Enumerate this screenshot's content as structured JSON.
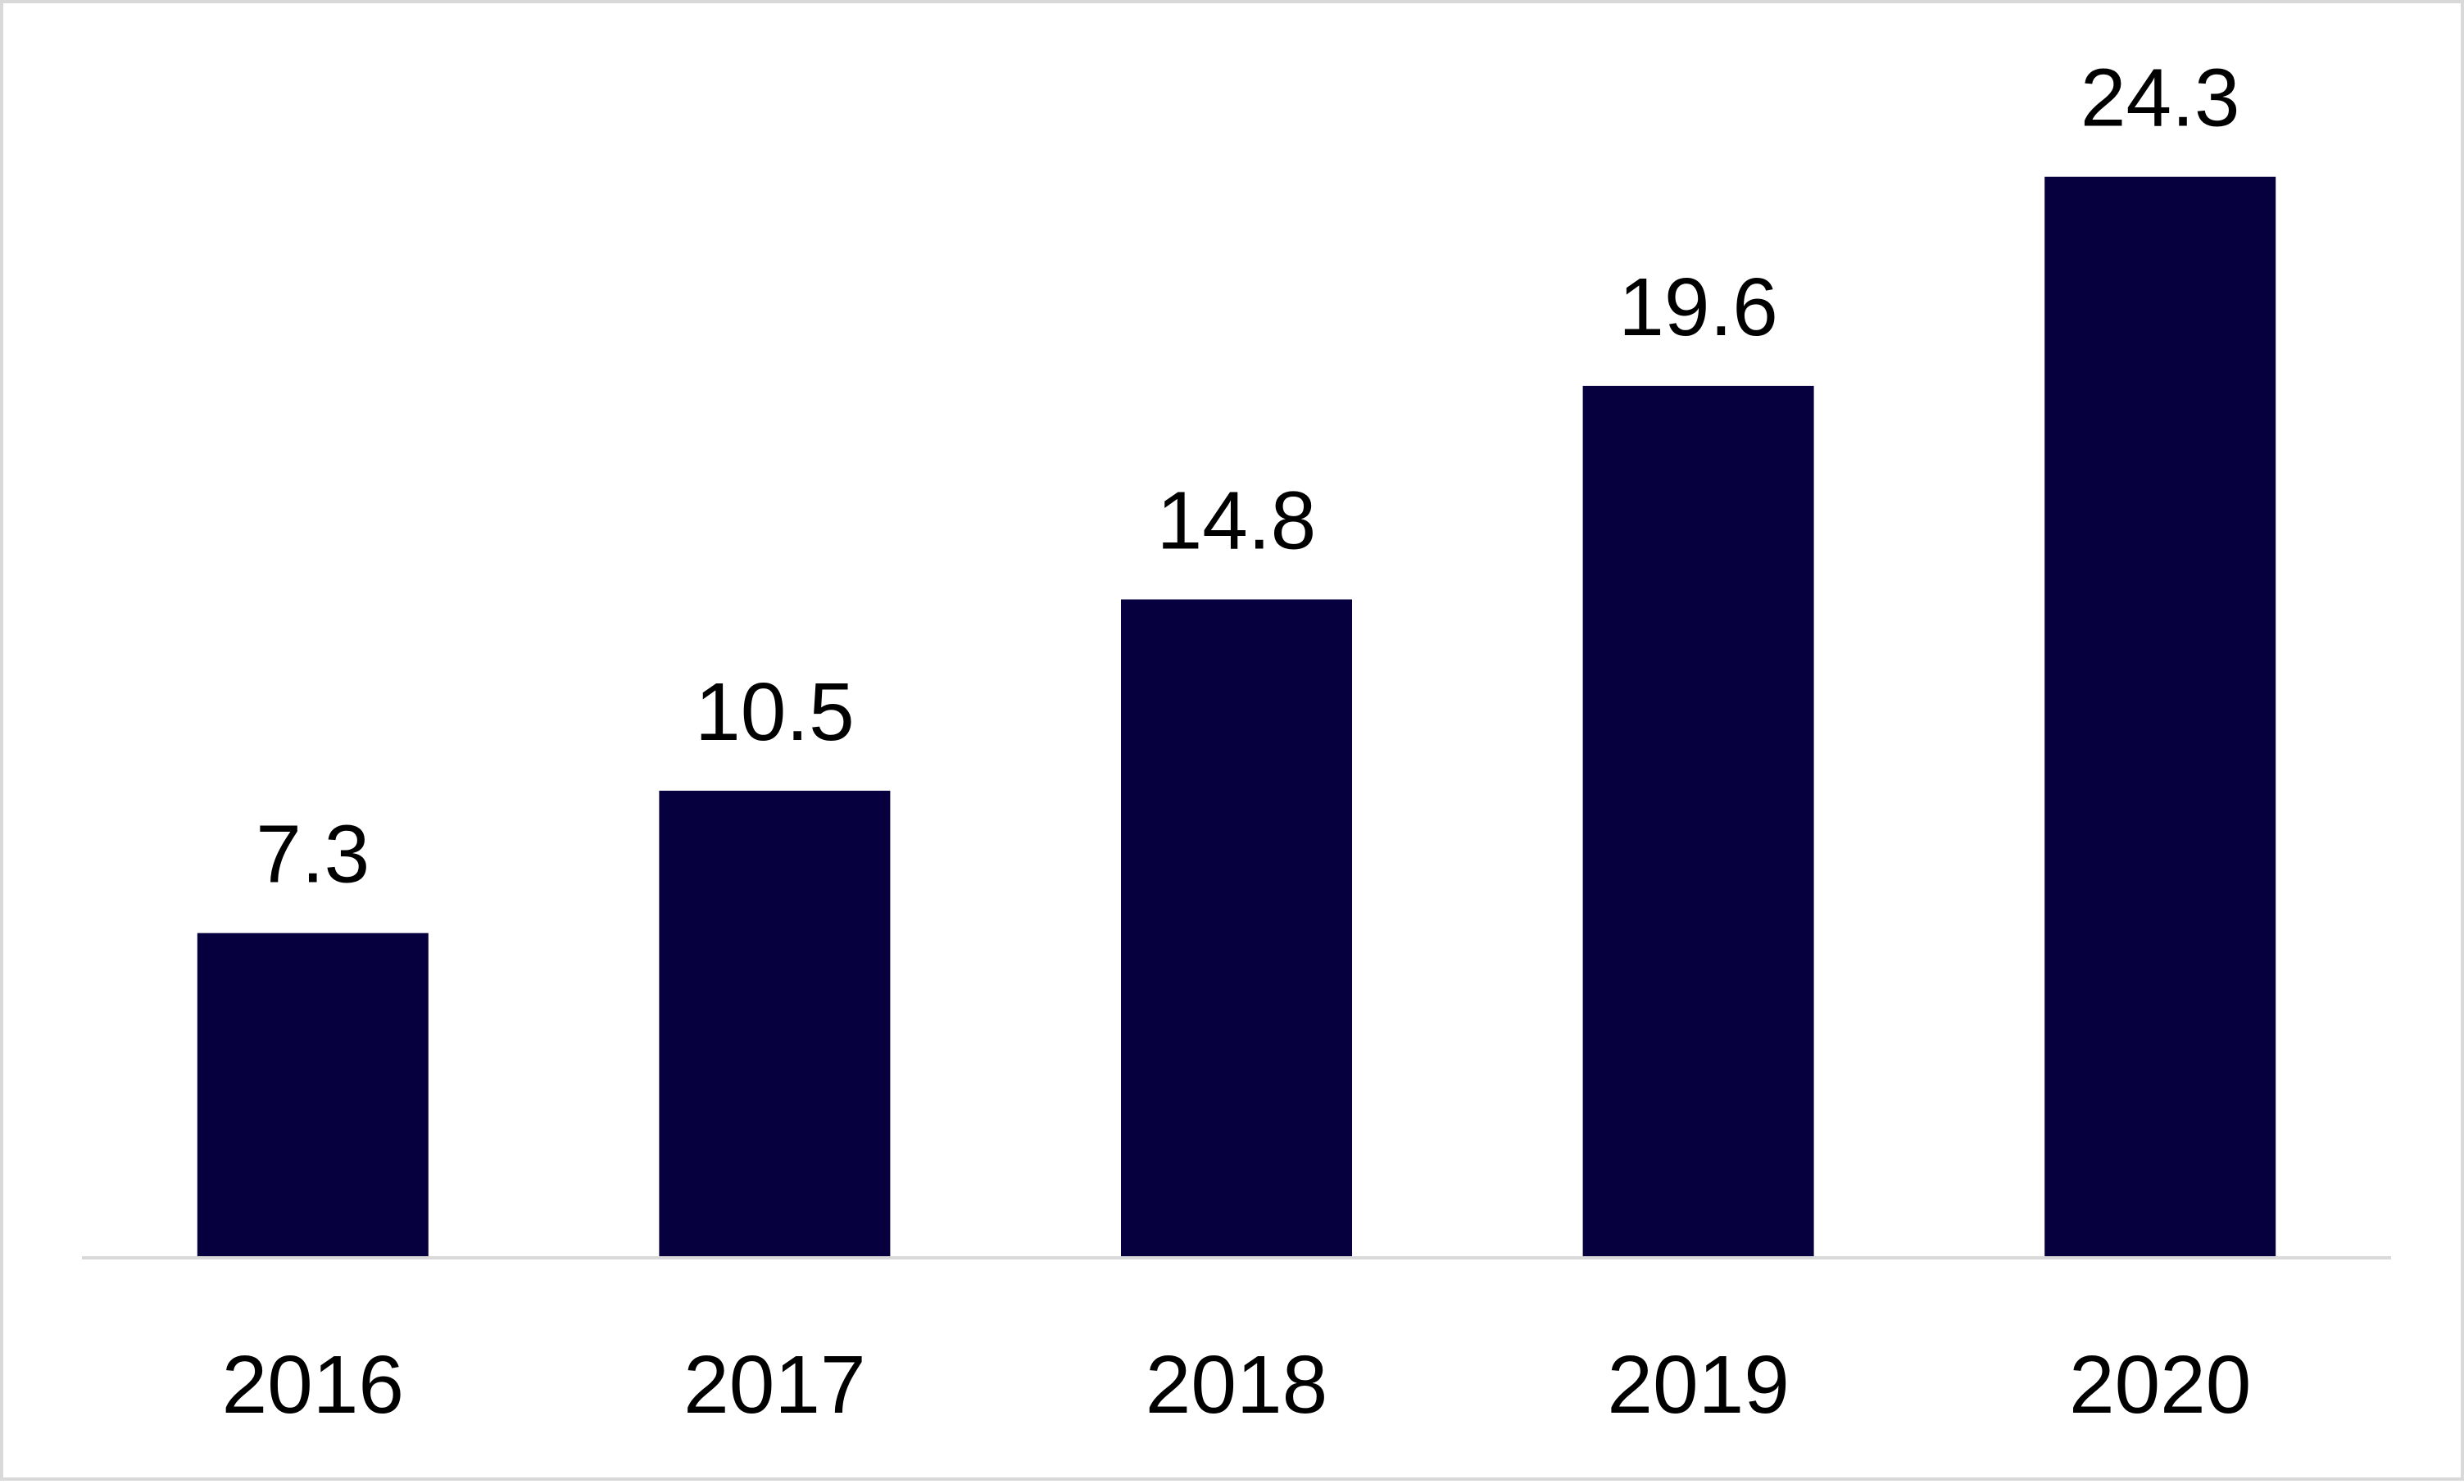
{
  "chart_data": {
    "type": "bar",
    "title": "",
    "xlabel": "",
    "ylabel": "",
    "categories": [
      "2016",
      "2017",
      "2018",
      "2019",
      "2020"
    ],
    "values": [
      7.3,
      10.5,
      14.8,
      19.6,
      24.3
    ],
    "data_labels": [
      "7.3",
      "10.5",
      "14.8",
      "19.6",
      "24.3"
    ],
    "ylim": [
      0,
      28.2
    ],
    "grid": false,
    "legend": "none",
    "colors": {
      "bar": "#06003f",
      "axis": "#d9d9d9",
      "border": "#d9d9d9",
      "text": "#000000"
    }
  }
}
